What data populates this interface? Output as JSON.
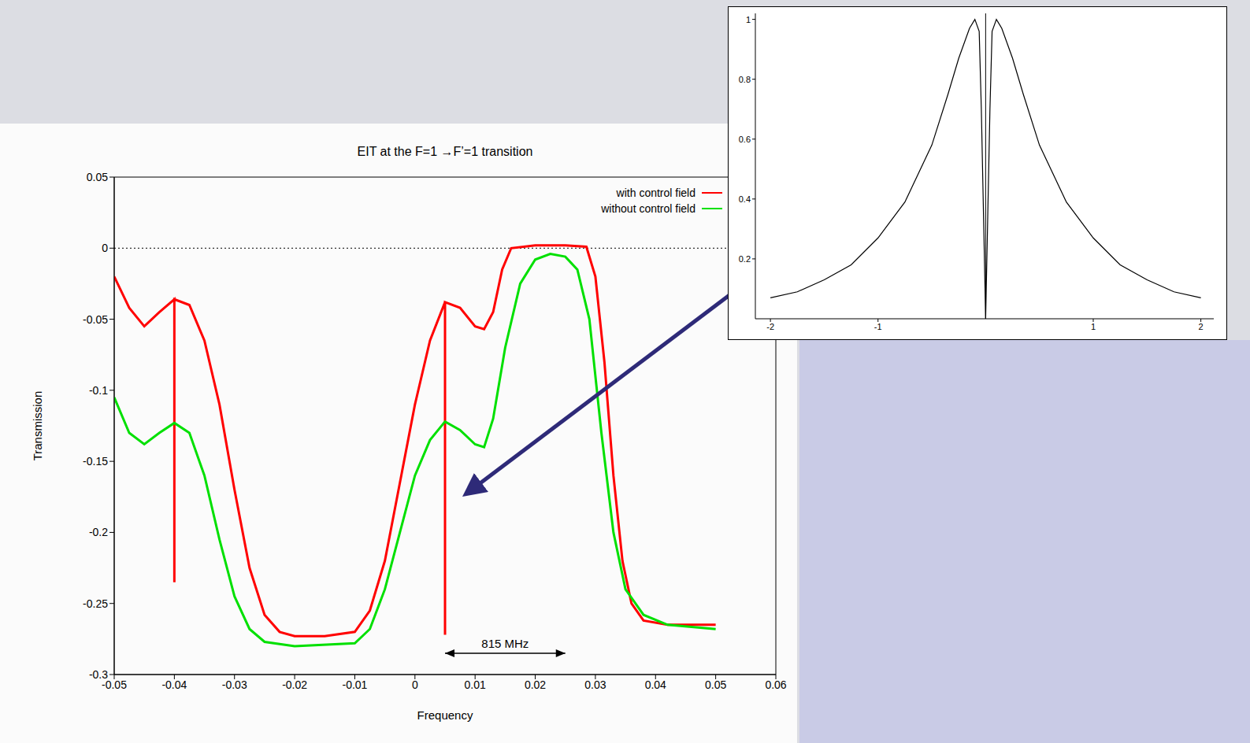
{
  "chart_data": [
    {
      "type": "line",
      "title": "EIT at the F=1 →F’=1 transition",
      "x_label": "Frequency",
      "y_label": "Transmission",
      "xlim": [
        -0.05,
        0.06
      ],
      "xticks": [
        -0.05,
        -0.04,
        -0.03,
        -0.02,
        -0.01,
        0,
        0.01,
        0.02,
        0.03,
        0.04,
        0.05,
        0.06
      ],
      "ylim": [
        -0.3,
        0.05
      ],
      "yticks": [
        -0.3,
        -0.25,
        -0.2,
        -0.15,
        -0.1,
        -0.05,
        0,
        0.05
      ],
      "legend": "upper right",
      "series": [
        {
          "name": "with control field",
          "color": "#ff0000",
          "x": [
            -0.05,
            -0.0475,
            -0.045,
            -0.0425,
            -0.04,
            -0.04,
            -0.04,
            -0.0375,
            -0.035,
            -0.0325,
            -0.03,
            -0.0275,
            -0.025,
            -0.0225,
            -0.02,
            -0.015,
            -0.01,
            -0.0075,
            -0.005,
            -0.0025,
            0,
            0.0025,
            0.005,
            0.005,
            0.005,
            0.0075,
            0.01,
            0.0115,
            0.013,
            0.0145,
            0.016,
            0.02,
            0.025,
            0.0285,
            0.03,
            0.0315,
            0.033,
            0.0345,
            0.036,
            0.038,
            0.042,
            0.05
          ],
          "values": [
            -0.02,
            -0.042,
            -0.055,
            -0.045,
            -0.036,
            -0.235,
            -0.036,
            -0.04,
            -0.065,
            -0.11,
            -0.17,
            -0.225,
            -0.258,
            -0.27,
            -0.273,
            -0.273,
            -0.27,
            -0.255,
            -0.22,
            -0.165,
            -0.11,
            -0.065,
            -0.038,
            -0.272,
            -0.038,
            -0.042,
            -0.055,
            -0.057,
            -0.045,
            -0.015,
            0,
            0.002,
            0.002,
            0.001,
            -0.02,
            -0.08,
            -0.16,
            -0.22,
            -0.25,
            -0.262,
            -0.265,
            -0.265
          ]
        },
        {
          "name": "without control field",
          "color": "#00e000",
          "x": [
            -0.05,
            -0.0475,
            -0.045,
            -0.0425,
            -0.04,
            -0.0375,
            -0.035,
            -0.0325,
            -0.03,
            -0.0275,
            -0.025,
            -0.02,
            -0.01,
            -0.0075,
            -0.005,
            -0.0025,
            0,
            0.0025,
            0.005,
            0.0075,
            0.01,
            0.0115,
            0.013,
            0.015,
            0.0175,
            0.02,
            0.0225,
            0.025,
            0.027,
            0.029,
            0.031,
            0.033,
            0.035,
            0.038,
            0.042,
            0.05
          ],
          "values": [
            -0.105,
            -0.13,
            -0.138,
            -0.13,
            -0.123,
            -0.13,
            -0.16,
            -0.205,
            -0.245,
            -0.268,
            -0.277,
            -0.28,
            -0.278,
            -0.268,
            -0.24,
            -0.2,
            -0.16,
            -0.135,
            -0.122,
            -0.128,
            -0.138,
            -0.14,
            -0.12,
            -0.07,
            -0.025,
            -0.008,
            -0.004,
            -0.006,
            -0.015,
            -0.05,
            -0.13,
            -0.2,
            -0.24,
            -0.258,
            -0.265,
            -0.268
          ]
        }
      ],
      "reference_lines": [
        {
          "y": 0,
          "line_style": "dotted"
        }
      ],
      "annotations": [
        {
          "text": "815 MHz",
          "x": [
            0.005,
            0.025
          ],
          "y": -0.285
        }
      ]
    },
    {
      "type": "line",
      "xlim": [
        -2.14,
        2.12
      ],
      "xticks": [
        -2,
        -1,
        1,
        2
      ],
      "ylim": [
        0,
        1.02
      ],
      "yticks": [
        0.2,
        0.4,
        0.6,
        0.8,
        1
      ],
      "series": [
        {
          "color": "#000000",
          "x": [
            -2,
            -1.75,
            -1.5,
            -1.25,
            -1,
            -0.75,
            -0.5,
            -0.35,
            -0.25,
            -0.15,
            -0.1,
            -0.06,
            -0.04,
            -0.02,
            0,
            0.02,
            0.04,
            0.06,
            0.1,
            0.15,
            0.25,
            0.35,
            0.5,
            0.75,
            1,
            1.25,
            1.5,
            1.75,
            2
          ],
          "values": [
            0.07,
            0.09,
            0.13,
            0.18,
            0.27,
            0.39,
            0.58,
            0.75,
            0.87,
            0.97,
            1.0,
            0.96,
            0.7,
            0.35,
            0,
            0.35,
            0.7,
            0.96,
            1.0,
            0.97,
            0.87,
            0.75,
            0.58,
            0.39,
            0.27,
            0.18,
            0.13,
            0.09,
            0.07
          ]
        }
      ],
      "reference_lines": [
        {
          "x": 0,
          "line_style": "solid"
        }
      ]
    }
  ]
}
